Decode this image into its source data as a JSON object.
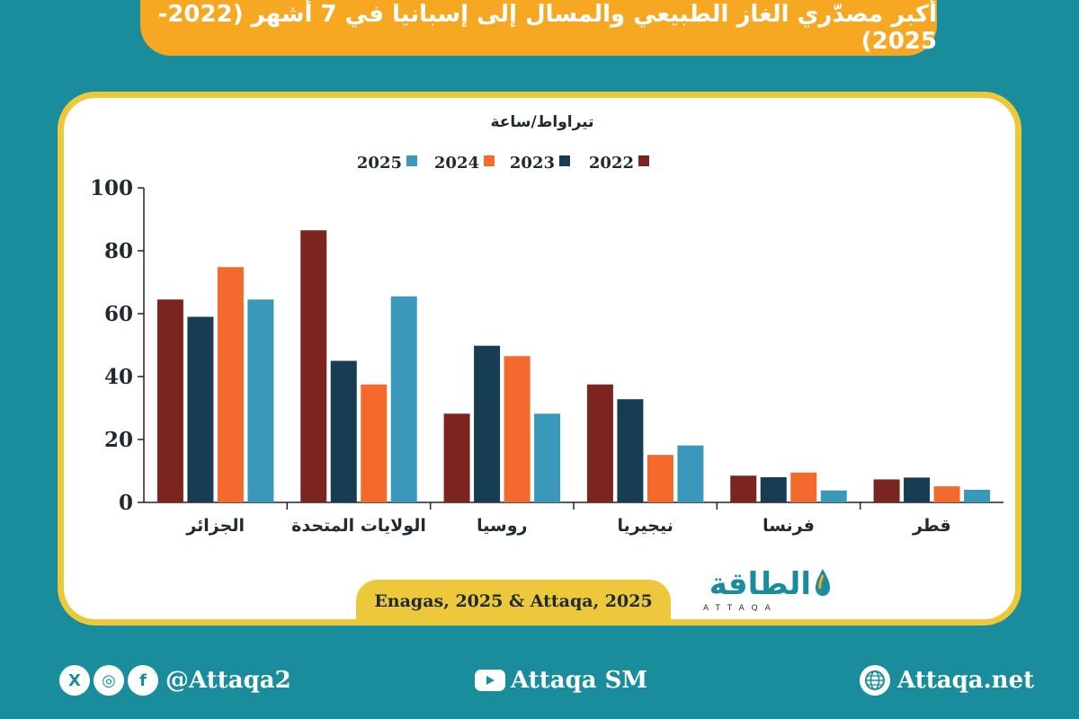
{
  "title": "أكبر مصدّري الغاز الطبيعي والمسال إلى إسبانيا في 7 أشهر (2022-2025)",
  "source": "Enagas, 2025 & Attaqa, 2025",
  "logo": {
    "arabic": "الطاقة",
    "latin": "ATTAQA"
  },
  "footer": {
    "social_handle": "@Attaqa2",
    "youtube": "Attaqa SM",
    "website": "Attaqa.net",
    "icons": [
      "x-icon",
      "instagram-icon",
      "facebook-icon",
      "youtube-icon",
      "globe-icon"
    ]
  },
  "colors": {
    "background": "#1a8d9c",
    "title_bar": "#f7a823",
    "card_border": "#ecc83a",
    "s2022": "#7b2420",
    "s2023": "#173d52",
    "s2024": "#f46a2c",
    "s2025": "#3a98ba"
  },
  "chart_data": {
    "type": "bar",
    "ylabel": "تيراواط/ساعة",
    "ylim": [
      0,
      100
    ],
    "yticks": [
      0,
      20,
      40,
      60,
      80,
      100
    ],
    "categories": [
      "الجزائر",
      "الولايات المتحدة",
      "روسيا",
      "نيجيريا",
      "فرنسا",
      "قطر"
    ],
    "series": [
      {
        "name": "2022",
        "values": [
          64.5,
          86.5,
          28.2,
          37.5,
          8.5,
          7.3
        ]
      },
      {
        "name": "2023",
        "values": [
          59.0,
          45.0,
          49.8,
          32.8,
          8.0,
          7.9
        ]
      },
      {
        "name": "2024",
        "values": [
          74.8,
          37.5,
          46.5,
          15.1,
          9.5,
          5.1
        ]
      },
      {
        "name": "2025",
        "values": [
          64.5,
          65.5,
          28.2,
          18.1,
          3.8,
          4.0
        ]
      }
    ],
    "legend_position": "top",
    "grid": false
  }
}
